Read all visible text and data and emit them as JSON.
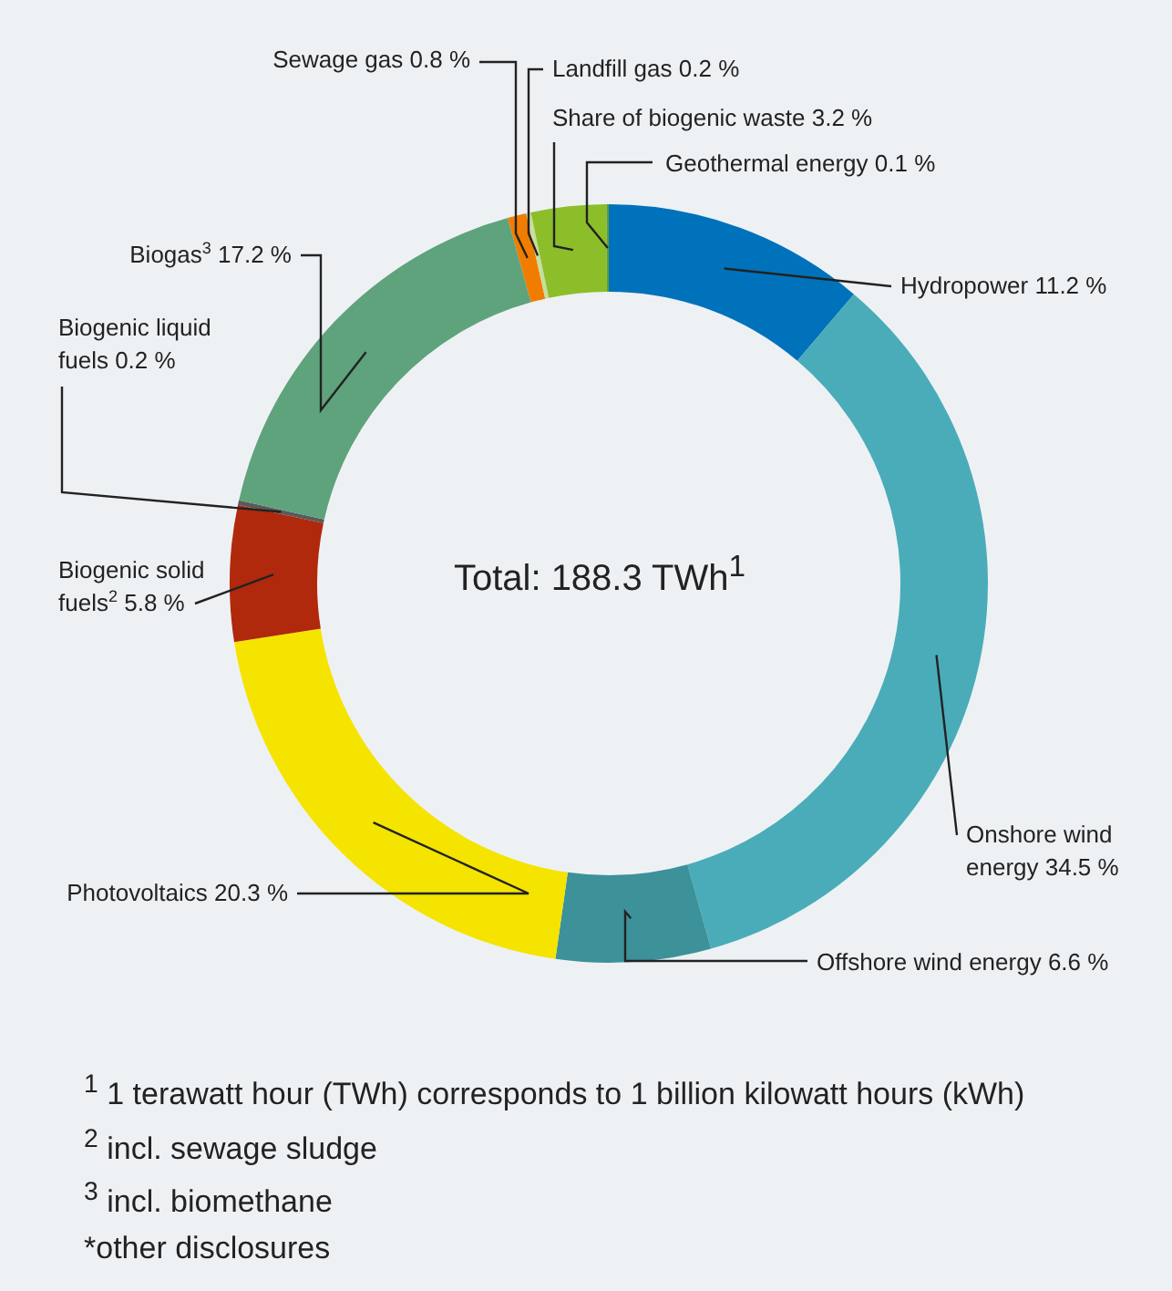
{
  "chart_data": {
    "type": "donut",
    "title": "Total: 188.3 TWh$^{1}$",
    "categories": [
      "Hydropower",
      "Onshore wind energy",
      "Offshore wind energy",
      "Photovoltaics",
      "Biogenic solid fuels$^{2}$",
      "Biogenic liquid fuels",
      "Biogas$^{3}$",
      "Sewage gas",
      "Landfill gas",
      "Share of biogenic waste",
      "Geothermal energy"
    ],
    "values": [
      11.2,
      34.5,
      6.6,
      20.3,
      5.8,
      0.2,
      17.2,
      0.8,
      0.2,
      3.2,
      0.1
    ],
    "value_labels": [
      "11.2 %",
      "34.5 %",
      "6.6 %",
      "20.3 %",
      "5.8 %",
      "0.2 %",
      "17.2 %",
      "0.8 %",
      "0.2 %",
      "3.2 %",
      "0.1 %"
    ],
    "colors": [
      "#0072bc",
      "#4aacb9",
      "#3d9199",
      "#f4e400",
      "#b0290c",
      "#5a5a5a",
      "#5ea37c",
      "#f07d00",
      "#c8dea0",
      "#8cbe2a",
      "#5a9e3a"
    ],
    "legend": false,
    "annotations": [
      "$^{1}$ 1 terawatt hour (TWh) corresponds to 1 billion kilowatt hours (kWh)",
      "$^{2}$ incl. sewage sludge",
      "$^{3}$ incl. biomethane",
      "*other disclosures"
    ]
  }
}
